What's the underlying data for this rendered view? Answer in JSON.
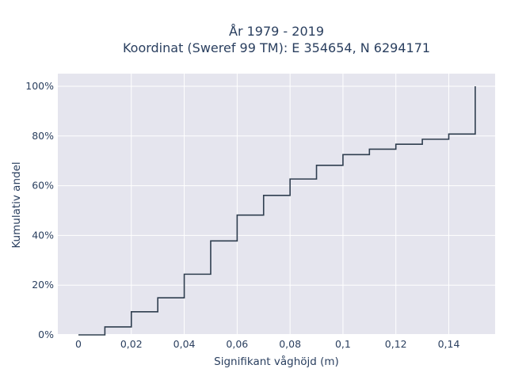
{
  "chart_data": {
    "type": "line",
    "title_line1": "År 1979 - 2019",
    "title_line2": "Koordinat (Sweref 99 TM): E 354654, N 6294171",
    "xlabel": "Signifikant våghöjd (m)",
    "ylabel": "Kumulativ andel",
    "xlim": [
      -0.008,
      0.158
    ],
    "ylim": [
      0,
      1.03
    ],
    "x_ticks": [
      0,
      0.02,
      0.04,
      0.06,
      0.08,
      0.1,
      0.12,
      0.14
    ],
    "x_tick_labels": [
      "0",
      "0,02",
      "0,04",
      "0,06",
      "0,08",
      "0,1",
      "0,12",
      "0,14"
    ],
    "y_ticks": [
      0,
      0.2,
      0.4,
      0.6,
      0.8,
      1.0
    ],
    "y_tick_labels": [
      "0%",
      "20%",
      "40%",
      "60%",
      "80%",
      "100%"
    ],
    "grid": true,
    "series": [
      {
        "line_shape": "step-after",
        "color": "#2f3e4f",
        "x": [
          0,
          0.01,
          0.02,
          0.03,
          0.04,
          0.05,
          0.06,
          0.07,
          0.08,
          0.09,
          0.1,
          0.11,
          0.12,
          0.13,
          0.14,
          0.15,
          0.15
        ],
        "y": [
          0,
          0.032,
          0.093,
          0.149,
          0.244,
          0.378,
          0.482,
          0.561,
          0.627,
          0.682,
          0.725,
          0.747,
          0.767,
          0.787,
          0.808,
          0.808,
          1.0
        ]
      }
    ]
  }
}
